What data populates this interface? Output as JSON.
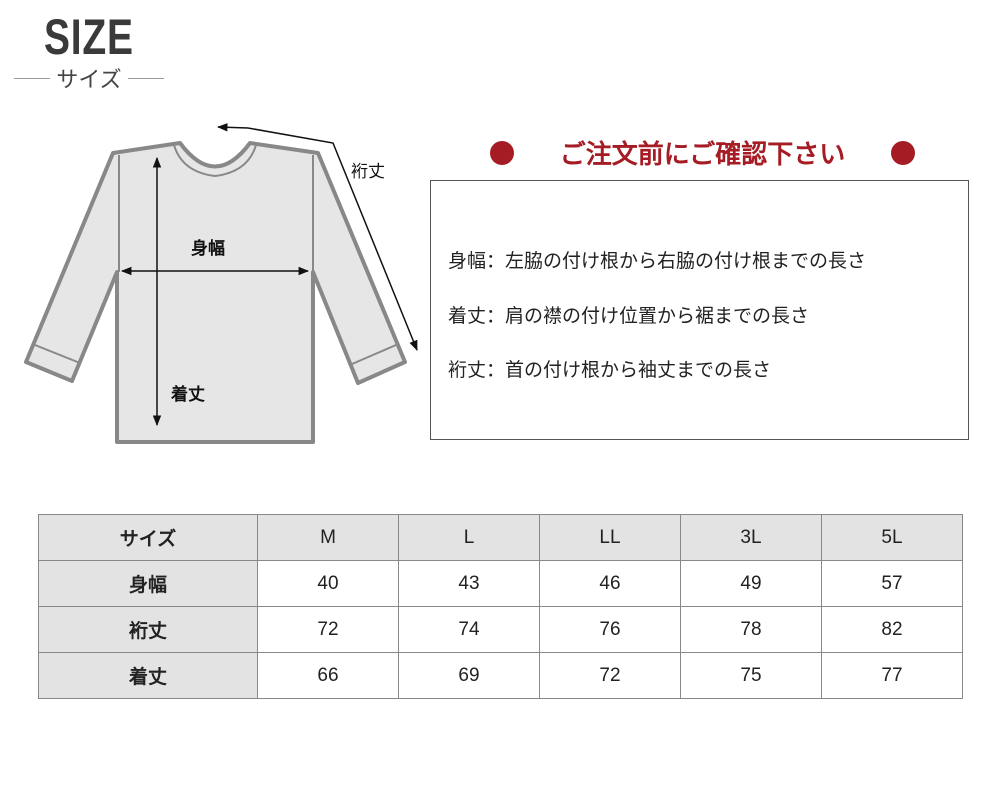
{
  "header": {
    "title": "SIZE",
    "subtitle": "サイズ"
  },
  "diagram": {
    "labels": {
      "width": "身幅",
      "length": "着丈",
      "sleeve": "裄丈"
    },
    "colors": {
      "outline": "#888888",
      "fill": "#e6e6e6",
      "arrow": "#111111"
    }
  },
  "notice": {
    "title": "ご注文前にご確認下さい",
    "accent_color": "#a51c24",
    "lines": [
      "身幅：左脇の付け根から右脇の付け根までの長さ",
      "着丈：肩の襟の付け位置から裾までの長さ",
      "裄丈：首の付け根から袖丈までの長さ"
    ]
  },
  "table": {
    "headers": [
      "サイズ",
      "M",
      "L",
      "LL",
      "3L",
      "5L"
    ],
    "rows": [
      {
        "label": "身幅",
        "values": [
          "40",
          "43",
          "46",
          "49",
          "57"
        ]
      },
      {
        "label": "裄丈",
        "values": [
          "72",
          "74",
          "76",
          "78",
          "82"
        ]
      },
      {
        "label": "着丈",
        "values": [
          "66",
          "69",
          "72",
          "75",
          "77"
        ]
      }
    ]
  }
}
